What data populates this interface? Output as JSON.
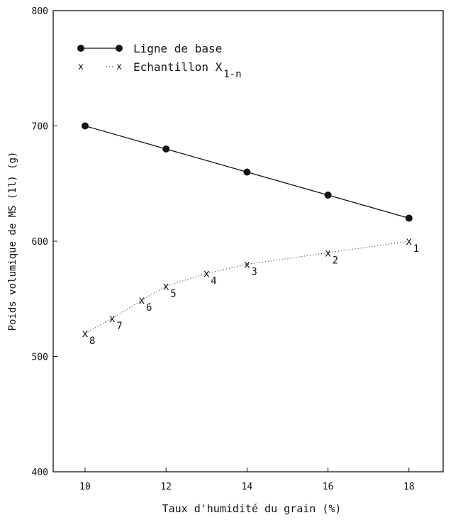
{
  "chart_data": {
    "type": "line",
    "xlabel": "Taux d'humidité du grain (%)",
    "ylabel": "Poids volumique de MS (1l) (g)",
    "xlim": [
      8.8,
      19.1
    ],
    "ylim": [
      400,
      800
    ],
    "xticks": [
      10,
      12,
      14,
      16,
      18
    ],
    "yticks": [
      400,
      500,
      600,
      700,
      800
    ],
    "grid": false,
    "legend_position": "top-left",
    "series": [
      {
        "name": "Ligne de base",
        "marker": "filled-circle",
        "line": "solid",
        "x": [
          10,
          12,
          14,
          16,
          18
        ],
        "y": [
          700,
          680,
          660,
          640,
          620
        ]
      },
      {
        "name": "Echantillon X",
        "name_subscript": "1-n",
        "marker": "x",
        "line": "dotted",
        "x": [
          18,
          16,
          14,
          13,
          12,
          11.4,
          10.67,
          10
        ],
        "y": [
          600,
          590,
          580,
          572,
          561,
          549,
          533,
          520
        ],
        "point_labels": [
          "1",
          "2",
          "3",
          "4",
          "5",
          "6",
          "7",
          "8"
        ]
      }
    ]
  }
}
